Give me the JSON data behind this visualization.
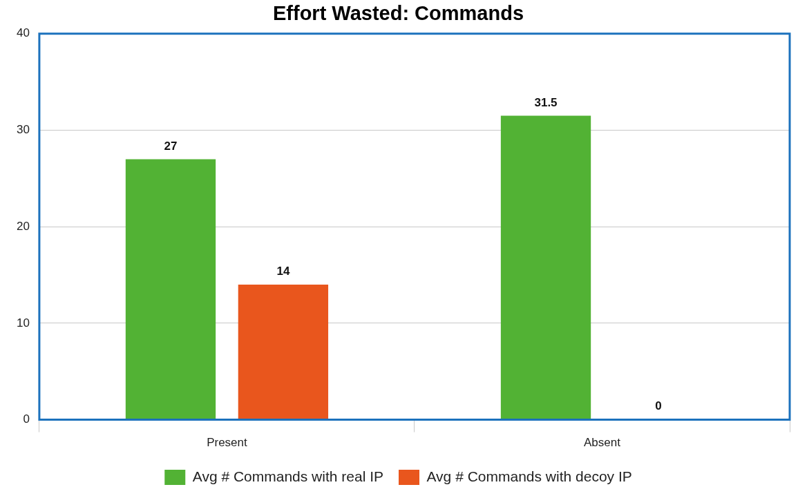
{
  "chart_data": {
    "type": "bar",
    "title": "Effort Wasted: Commands",
    "categories": [
      "Present",
      "Absent"
    ],
    "series": [
      {
        "name": "Avg # Commands with real IP",
        "color": "#52b234",
        "values": [
          27,
          31.5
        ]
      },
      {
        "name": "Avg # Commands with decoy IP",
        "color": "#e9561d",
        "values": [
          14,
          0
        ]
      }
    ],
    "ylim": [
      0,
      40
    ],
    "yticks": [
      0,
      10,
      20,
      30,
      40
    ],
    "grid": "y",
    "legend": "bottom",
    "data_labels": true
  }
}
